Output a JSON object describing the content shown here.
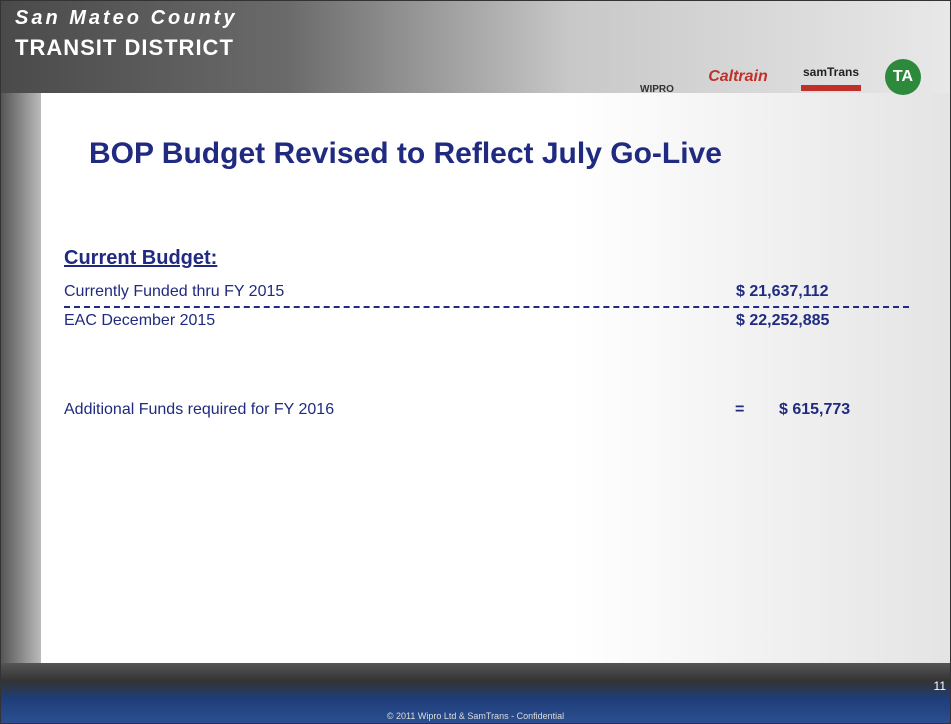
{
  "header": {
    "org_line1": "San Mateo County",
    "org_line2": "TRANSIT DISTRICT",
    "logos": [
      "WIPRO",
      "Caltrain",
      "samTrans",
      "TA"
    ]
  },
  "title": "BOP Budget Revised to Reflect July Go-Live",
  "section": "Current Budget:",
  "rows": [
    {
      "label": "Currently Funded thru FY 2015",
      "amount": "$ 21,637,112"
    },
    {
      "label": "EAC December 2015",
      "amount": "$ 22,252,885"
    }
  ],
  "result": {
    "label": "Additional Funds required for FY 2016",
    "operator": "=",
    "amount": "$ 615,773"
  },
  "footer": {
    "copyright": "© 2011 Wipro Ltd & SamTrans -  Confidential",
    "page": "11"
  }
}
